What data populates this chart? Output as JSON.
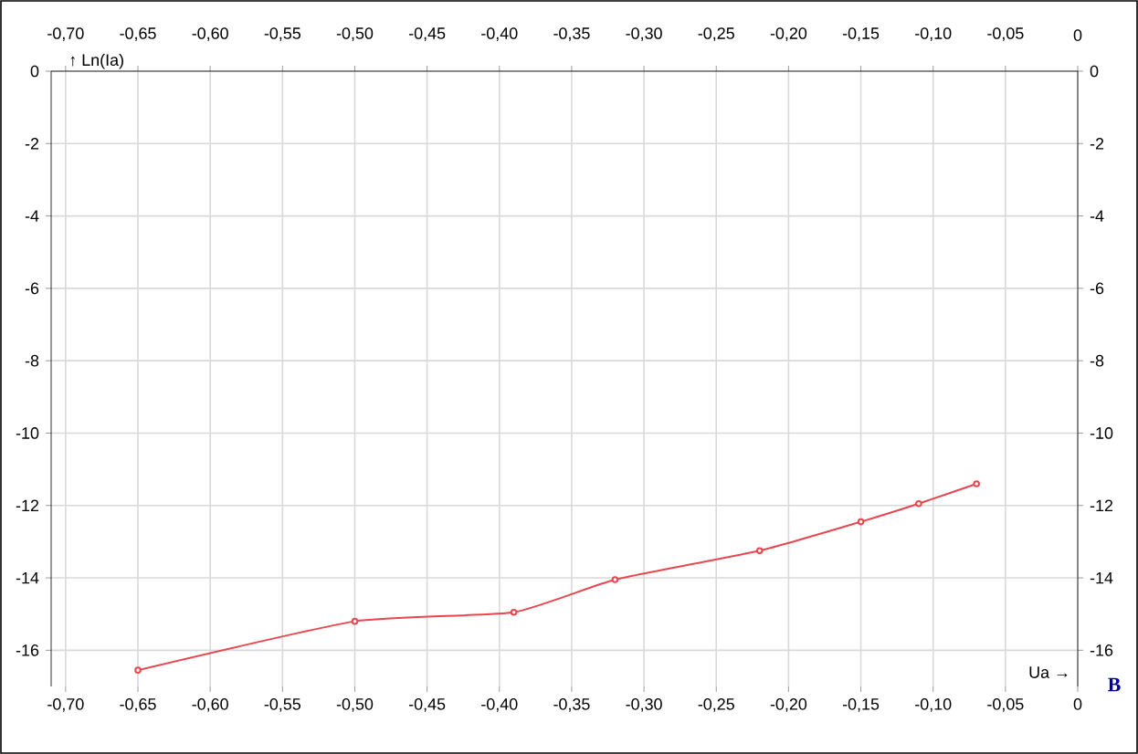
{
  "chart_data": {
    "type": "line",
    "xlabel": "Ua →",
    "ylabel": "↑ Ln(Ia)",
    "annotations": [
      "B"
    ],
    "x": [
      -0.65,
      -0.5,
      -0.39,
      -0.32,
      -0.22,
      -0.15,
      -0.11,
      -0.07
    ],
    "series": [
      {
        "color": "#e8474f",
        "values": [
          -16.55,
          -15.2,
          -14.95,
          -14.05,
          -13.25,
          -12.45,
          -11.95,
          -11.4
        ]
      }
    ],
    "marker": "circle",
    "line_style": "solid",
    "grid": true,
    "xlim": [
      -0.71,
      0
    ],
    "ylim": [
      -17,
      0
    ],
    "xticks": [
      {
        "value": -0.7,
        "label": "-0,70"
      },
      {
        "value": -0.65,
        "label": "-0,65"
      },
      {
        "value": -0.6,
        "label": "-0,60"
      },
      {
        "value": -0.55,
        "label": "-0,55"
      },
      {
        "value": -0.5,
        "label": "-0,50"
      },
      {
        "value": -0.45,
        "label": "-0,45"
      },
      {
        "value": -0.4,
        "label": "-0,40"
      },
      {
        "value": -0.35,
        "label": "-0,35"
      },
      {
        "value": -0.3,
        "label": "-0,30"
      },
      {
        "value": -0.25,
        "label": "-0,25"
      },
      {
        "value": -0.2,
        "label": "-0,20"
      },
      {
        "value": -0.15,
        "label": "-0,15"
      },
      {
        "value": -0.1,
        "label": "-0,10"
      },
      {
        "value": -0.05,
        "label": "-0,05"
      },
      0
    ],
    "yticks": [
      0,
      -2,
      -4,
      -6,
      -8,
      -10,
      -12,
      -14,
      -16
    ],
    "x2lim": [
      -0.71,
      0
    ],
    "y2lim": [
      -17,
      0
    ],
    "x2ticks": [
      {
        "value": -0.7,
        "label": "-0,70"
      },
      {
        "value": -0.65,
        "label": "-0,65"
      },
      {
        "value": -0.6,
        "label": "-0,60"
      },
      {
        "value": -0.55,
        "label": "-0,55"
      },
      {
        "value": -0.5,
        "label": "-0,50"
      },
      {
        "value": -0.45,
        "label": "-0,45"
      },
      {
        "value": -0.4,
        "label": "-0,40"
      },
      {
        "value": -0.35,
        "label": "-0,35"
      },
      {
        "value": -0.3,
        "label": "-0,30"
      },
      {
        "value": -0.25,
        "label": "-0,25"
      },
      {
        "value": -0.2,
        "label": "-0,20"
      },
      {
        "value": -0.15,
        "label": "-0,15"
      },
      {
        "value": -0.1,
        "label": "-0,10"
      },
      {
        "value": -0.05,
        "label": "-0,05"
      },
      0
    ],
    "y2ticks": [
      0,
      -2,
      -4,
      -6,
      -8,
      -10,
      -12,
      -14,
      -16
    ]
  }
}
